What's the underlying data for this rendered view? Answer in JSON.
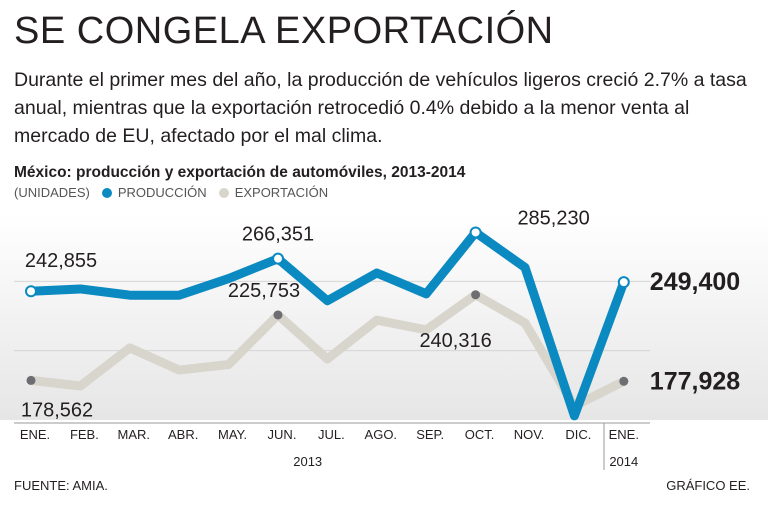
{
  "header": {
    "title": "SE CONGELA EXPORTACIÓN",
    "subtitle": "Durante el primer mes del año, la producción de vehículos ligeros creció 2.7% a tasa anual, mientras que la exportación retrocedió 0.4% debido a la menor venta al mercado de EU, afectado por el mal clima."
  },
  "chart_data": {
    "type": "line",
    "title": "México: producción y exportación de automóviles, 2013-2014",
    "units": "(UNIDADES)",
    "categories": [
      "ENE.",
      "FEB.",
      "MAR.",
      "ABR.",
      "MAY.",
      "JUN.",
      "JUL.",
      "AGO.",
      "SEP.",
      "OCT.",
      "NOV.",
      "DIC.",
      "ENE."
    ],
    "year_labels": [
      "2013",
      "2014"
    ],
    "ylim": [
      150000,
      300000
    ],
    "series": [
      {
        "name": "PRODUCCIÓN",
        "color": "#0a8ac0",
        "values": [
          242855,
          244500,
          240000,
          240000,
          252000,
          266351,
          236000,
          256000,
          241000,
          285230,
          260000,
          153000,
          249400
        ]
      },
      {
        "name": "EXPORTACIÓN",
        "color": "#d8d5cc",
        "values": [
          178562,
          174500,
          202000,
          186000,
          190000,
          225753,
          194000,
          222000,
          215000,
          240316,
          220000,
          160000,
          177928
        ]
      }
    ],
    "labels": [
      {
        "series": 0,
        "index": 0,
        "text": "242,855",
        "pos": "above",
        "marker": true
      },
      {
        "series": 0,
        "index": 5,
        "text": "266,351",
        "pos": "above",
        "marker": true
      },
      {
        "series": 0,
        "index": 9,
        "text": "285,230",
        "pos": "above-right",
        "marker": true
      },
      {
        "series": 0,
        "index": 12,
        "text": "249,400",
        "pos": "right-bold",
        "marker": true
      },
      {
        "series": 1,
        "index": 0,
        "text": "178,562",
        "pos": "below",
        "marker": true
      },
      {
        "series": 1,
        "index": 5,
        "text": "225,753",
        "pos": "above",
        "marker": true
      },
      {
        "series": 1,
        "index": 9,
        "text": "240,316",
        "pos": "below",
        "marker": true
      },
      {
        "series": 1,
        "index": 12,
        "text": "177,928",
        "pos": "right-bold",
        "marker": true
      }
    ]
  },
  "footer": {
    "source": "FUENTE: AMIA.",
    "credit": "GRÁFICO EE."
  }
}
